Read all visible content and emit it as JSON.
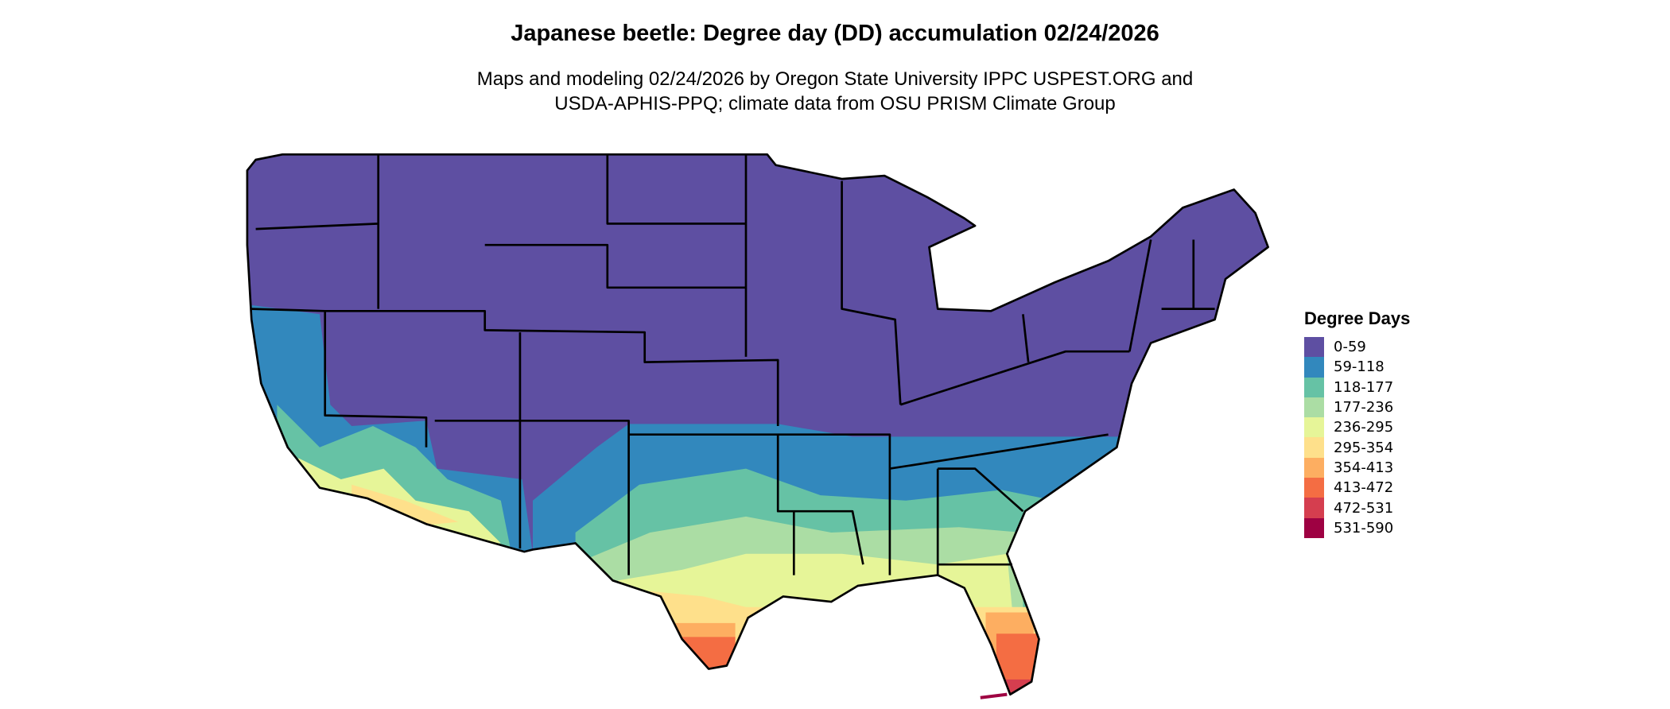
{
  "title": "Japanese beetle: Degree day (DD) accumulation 02/24/2026",
  "subtitle_line1": "Maps and modeling 02/24/2026 by Oregon State University IPPC USPEST.ORG and",
  "subtitle_line2": "USDA-APHIS-PPQ; climate data from OSU PRISM Climate Group",
  "map": {
    "region": "Contiguous United States",
    "state_borders": true
  },
  "legend": {
    "title": "Degree Days",
    "items": [
      {
        "label": "0-59",
        "color": "#5E4FA2"
      },
      {
        "label": "59-118",
        "color": "#3288BD"
      },
      {
        "label": "118-177",
        "color": "#66C2A5"
      },
      {
        "label": "177-236",
        "color": "#ABDDA4"
      },
      {
        "label": "236-295",
        "color": "#E6F598"
      },
      {
        "label": "295-354",
        "color": "#FEE08B"
      },
      {
        "label": "354-413",
        "color": "#FDAE61"
      },
      {
        "label": "413-472",
        "color": "#F46D43"
      },
      {
        "label": "472-531",
        "color": "#D53E4F"
      },
      {
        "label": "531-590",
        "color": "#9E0142"
      }
    ]
  }
}
